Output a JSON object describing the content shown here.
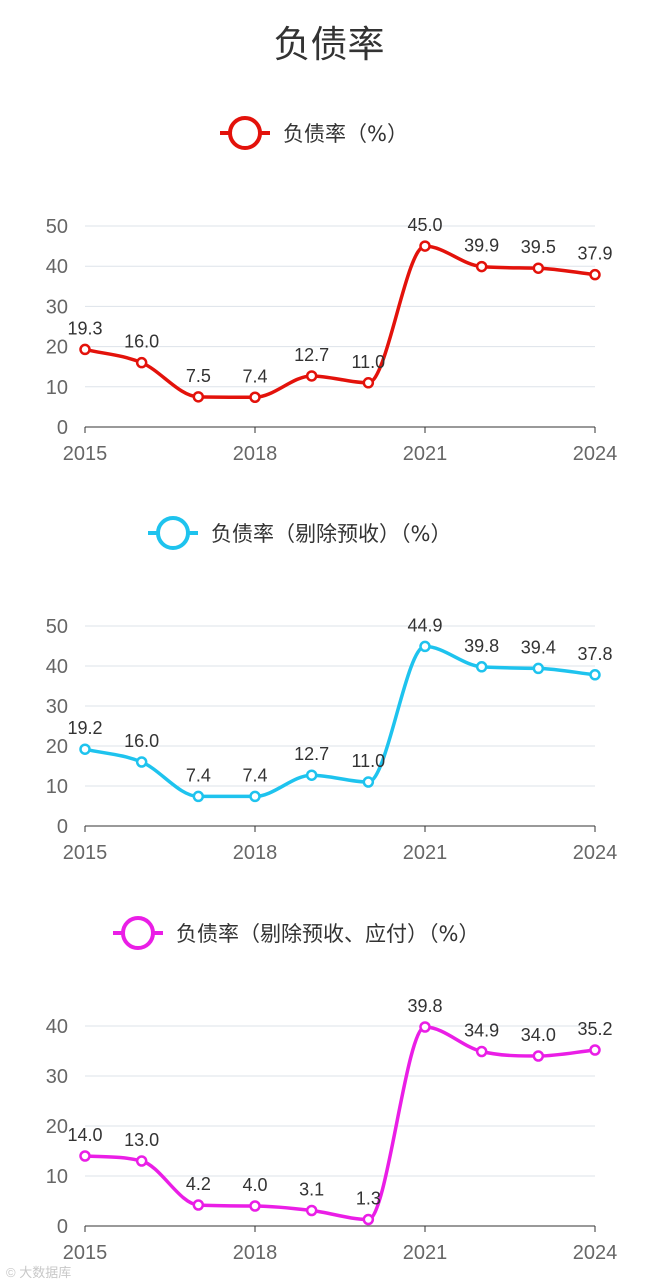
{
  "title": "负债率",
  "watermark": "© 大数据库",
  "chart_data": [
    {
      "type": "line",
      "legend": "负债率（%）",
      "color": "#e3120b",
      "x": [
        2015,
        2016,
        2017,
        2018,
        2019,
        2020,
        2021,
        2022,
        2023,
        2024
      ],
      "values": [
        19.3,
        16.0,
        7.5,
        7.4,
        12.7,
        11.0,
        45.0,
        39.9,
        39.5,
        37.9
      ],
      "xticks": [
        "2015",
        "2018",
        "2021",
        "2024"
      ],
      "yticks": [
        "0",
        "10",
        "20",
        "30",
        "40",
        "50"
      ],
      "ylim": [
        0,
        50
      ]
    },
    {
      "type": "line",
      "legend": "负债率（剔除预收）（%）",
      "color": "#1ec3ee",
      "x": [
        2015,
        2016,
        2017,
        2018,
        2019,
        2020,
        2021,
        2022,
        2023,
        2024
      ],
      "values": [
        19.2,
        16.0,
        7.4,
        7.4,
        12.7,
        11.0,
        44.9,
        39.8,
        39.4,
        37.8
      ],
      "xticks": [
        "2015",
        "2018",
        "2021",
        "2024"
      ],
      "yticks": [
        "0",
        "10",
        "20",
        "30",
        "40",
        "50"
      ],
      "ylim": [
        0,
        50
      ]
    },
    {
      "type": "line",
      "legend": "负债率（剔除预收、应付）（%）",
      "color": "#ea1ee6",
      "x": [
        2015,
        2016,
        2017,
        2018,
        2019,
        2020,
        2021,
        2022,
        2023,
        2024
      ],
      "values": [
        14.0,
        13.0,
        4.2,
        4.0,
        3.1,
        1.3,
        39.8,
        34.9,
        34.0,
        35.2
      ],
      "xticks": [
        "2015",
        "2018",
        "2021",
        "2024"
      ],
      "yticks": [
        "0",
        "10",
        "20",
        "30",
        "40"
      ],
      "ylim": [
        0,
        40
      ]
    }
  ]
}
